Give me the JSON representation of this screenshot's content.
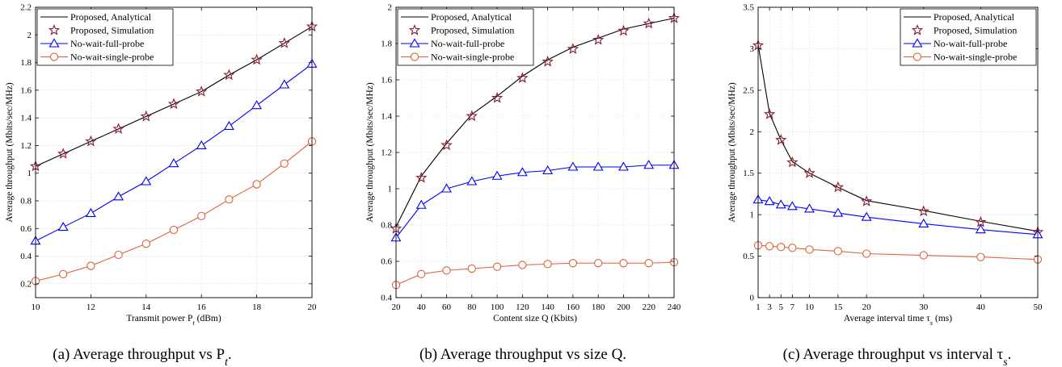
{
  "colors": {
    "proposed_analytical": "#000000",
    "proposed_simulation": "#8b1a2b",
    "no_wait_full": "#0000ff",
    "no_wait_single": "#e0603a"
  },
  "legend": {
    "items": [
      {
        "label": "Proposed, Analytical",
        "style": "line"
      },
      {
        "label": "Proposed, Simulation",
        "style": "star"
      },
      {
        "label": "No-wait-full-probe",
        "style": "triangle"
      },
      {
        "label": "No-wait-single-probe",
        "style": "circle"
      }
    ]
  },
  "charts": [
    {
      "caption": "(a) Average throughput vs P",
      "caption_sub": "t",
      "caption_end": ".",
      "xlabel": "Transmit power P",
      "xlabel_sub": "t",
      "xlabel_end": " (dBm)",
      "ylabel": "Average throughput (Mbits/sec/MHz)",
      "legend_position": "top-left"
    },
    {
      "caption": "(b) Average throughput vs size Q",
      "caption_sub": "",
      "caption_end": ".",
      "xlabel": "Content size Q (Kbits)",
      "xlabel_sub": "",
      "xlabel_end": "",
      "ylabel": "Average throughput (Mbits/sec/MHz)",
      "legend_position": "top-left"
    },
    {
      "caption": "(c) Average throughput vs interval τ",
      "caption_sub": "s",
      "caption_end": ".",
      "xlabel": "Average interval time τ",
      "xlabel_sub": "s",
      "xlabel_end": "  (ms)",
      "ylabel": "Average throughput (Mbits/sec/MHz)",
      "legend_position": "top-right"
    }
  ],
  "chart_data": [
    {
      "type": "line",
      "grid": true,
      "xlim": [
        10,
        20
      ],
      "ylim": [
        0.1,
        2.2
      ],
      "xticks": [
        10,
        12,
        14,
        16,
        18,
        20
      ],
      "yticks": [
        0.2,
        0.4,
        0.6,
        0.8,
        1,
        1.2,
        1.4,
        1.6,
        1.8,
        2,
        2.2
      ],
      "x": [
        10,
        11,
        12,
        13,
        14,
        15,
        16,
        17,
        18,
        19,
        20
      ],
      "series": [
        {
          "name": "Proposed, Analytical",
          "marker": "none",
          "values": [
            1.05,
            1.14,
            1.23,
            1.32,
            1.41,
            1.5,
            1.59,
            1.71,
            1.82,
            1.94,
            2.06
          ]
        },
        {
          "name": "Proposed, Simulation",
          "marker": "star",
          "values": [
            1.05,
            1.14,
            1.23,
            1.32,
            1.41,
            1.5,
            1.59,
            1.71,
            1.82,
            1.94,
            2.06
          ]
        },
        {
          "name": "No-wait-full-probe",
          "marker": "triangle",
          "values": [
            0.51,
            0.61,
            0.71,
            0.83,
            0.94,
            1.07,
            1.2,
            1.34,
            1.49,
            1.64,
            1.79
          ]
        },
        {
          "name": "No-wait-single-probe",
          "marker": "circle",
          "values": [
            0.22,
            0.27,
            0.33,
            0.41,
            0.49,
            0.59,
            0.69,
            0.81,
            0.92,
            1.07,
            1.23
          ]
        }
      ]
    },
    {
      "type": "line",
      "grid": true,
      "xlim": [
        20,
        240
      ],
      "ylim": [
        0.4,
        2.0
      ],
      "xticks": [
        20,
        40,
        60,
        80,
        100,
        120,
        140,
        160,
        180,
        200,
        220,
        240
      ],
      "yticks": [
        0.4,
        0.6,
        0.8,
        1,
        1.2,
        1.4,
        1.6,
        1.8,
        2
      ],
      "x": [
        20,
        40,
        60,
        80,
        100,
        120,
        140,
        160,
        180,
        200,
        220,
        240
      ],
      "series": [
        {
          "name": "Proposed, Analytical",
          "marker": "none",
          "values": [
            0.79,
            1.07,
            1.25,
            1.41,
            1.51,
            1.62,
            1.71,
            1.78,
            1.83,
            1.88,
            1.91,
            1.94
          ]
        },
        {
          "name": "Proposed, Simulation",
          "marker": "star",
          "values": [
            0.78,
            1.06,
            1.24,
            1.4,
            1.5,
            1.61,
            1.7,
            1.77,
            1.82,
            1.87,
            1.91,
            1.94
          ]
        },
        {
          "name": "No-wait-full-probe",
          "marker": "triangle",
          "values": [
            0.73,
            0.91,
            1.0,
            1.04,
            1.07,
            1.09,
            1.1,
            1.12,
            1.12,
            1.12,
            1.13,
            1.13
          ]
        },
        {
          "name": "No-wait-single-probe",
          "marker": "circle",
          "values": [
            0.47,
            0.53,
            0.55,
            0.56,
            0.57,
            0.58,
            0.585,
            0.59,
            0.59,
            0.59,
            0.59,
            0.595
          ]
        }
      ]
    },
    {
      "type": "line",
      "grid": true,
      "xlim": [
        1,
        50
      ],
      "ylim": [
        0,
        3.5
      ],
      "xticks": [
        1,
        3,
        5,
        7,
        10,
        15,
        20,
        30,
        40,
        50
      ],
      "yticks": [
        0,
        0.5,
        1,
        1.5,
        2,
        2.5,
        3,
        3.5
      ],
      "x": [
        1,
        3,
        5,
        7,
        10,
        15,
        20,
        30,
        40,
        50
      ],
      "series": [
        {
          "name": "Proposed, Analytical",
          "marker": "none",
          "values": [
            3.05,
            2.22,
            1.9,
            1.64,
            1.5,
            1.33,
            1.17,
            1.05,
            0.92,
            0.8
          ]
        },
        {
          "name": "Proposed, Simulation",
          "marker": "star",
          "values": [
            3.04,
            2.21,
            1.9,
            1.63,
            1.5,
            1.33,
            1.16,
            1.04,
            0.91,
            0.79
          ]
        },
        {
          "name": "No-wait-full-probe",
          "marker": "triangle",
          "values": [
            1.18,
            1.16,
            1.12,
            1.1,
            1.07,
            1.02,
            0.97,
            0.89,
            0.82,
            0.76
          ]
        },
        {
          "name": "No-wait-single-probe",
          "marker": "circle",
          "values": [
            0.63,
            0.62,
            0.61,
            0.6,
            0.58,
            0.56,
            0.53,
            0.51,
            0.49,
            0.46
          ]
        }
      ]
    }
  ]
}
